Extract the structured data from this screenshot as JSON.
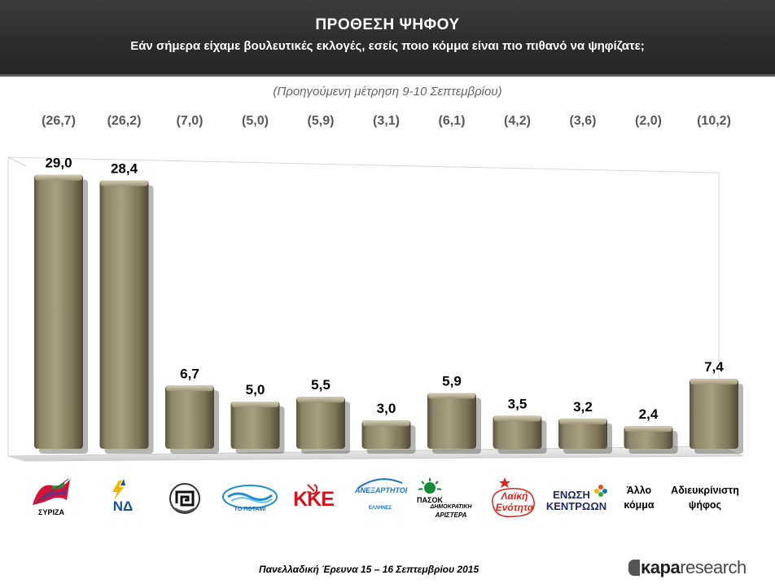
{
  "header": {
    "title": "ΠΡΟΘΕΣΗ ΨΗΦΟΥ",
    "subtitle": "Εάν σήμερα είχαμε βουλευτικές εκλογές, εσείς ποιο κόμμα είναι πιο πιθανό να ψηφίζατε;"
  },
  "previous_note": "(Προηγούμενη μέτρηση 9-10 Σεπτεμβρίου)",
  "chart_data": {
    "type": "bar",
    "title": "ΠΡΟΘΕΣΗ ΨΗΦΟΥ",
    "categories": [
      "ΣΥΡΙΖΑ",
      "ΝΔ",
      "Χρυσή Αυγή",
      "Το Ποτάμι",
      "ΚΚΕ",
      "Ανεξάρτητοι Έλληνες",
      "ΠΑΣΟΚ Δημοκρατική Αριστερά",
      "Λαϊκή Ενότητα",
      "Ένωση Κεντρώων",
      "Άλλο κόμμα",
      "Αδιευκρίνιστη ψήφος"
    ],
    "series": [
      {
        "name": "Πρόθεση ψήφου 15-16 Σεπτεμβρίου",
        "values": [
          29.0,
          28.4,
          6.7,
          5.0,
          5.5,
          3.0,
          5.9,
          3.5,
          3.2,
          2.4,
          7.4
        ]
      },
      {
        "name": "Προηγούμενη μέτρηση 9-10 Σεπτεμβρίου",
        "values": [
          26.7,
          26.2,
          7.0,
          5.0,
          5.9,
          3.1,
          6.1,
          4.2,
          3.6,
          2.0,
          10.2
        ]
      }
    ],
    "value_labels": [
      "29,0",
      "28,4",
      "6,7",
      "5,0",
      "5,5",
      "3,0",
      "5,9",
      "3,5",
      "3,2",
      "2,4",
      "7,4"
    ],
    "previous_labels": [
      "(26,7)",
      "(26,2)",
      "(7,0)",
      "(5,0)",
      "(5,9)",
      "(3,1)",
      "(6,1)",
      "(4,2)",
      "(3,6)",
      "(2,0)",
      "(10,2)"
    ],
    "ylim": [
      0,
      30
    ],
    "colors": {
      "bar": "#8a8066",
      "bar_light": "#c7bfa6",
      "bar_dark": "#4e4838",
      "prev_text": "#595959"
    }
  },
  "logos": {
    "syriza": "ΣΥΡΙΖΑ",
    "nd": "ΝΔ",
    "potami": "ΤΟ ΠΟΤΑΜΙ",
    "kke": "ΚΚΕ",
    "anel_1": "ΑΝΕΞΑΡΤΗΤΟΙ",
    "anel_2": "ΕΛΛΗΝΕΣ",
    "pasok_1": "ΠΑΣΟΚ",
    "pasok_2": "ΔΗΜΟΚΡΑΤΙΚΗ",
    "pasok_3": "ΑΡΙΣΤΕΡΑ",
    "laiki_1": "Λαϊκή",
    "laiki_2": "Ενότητα",
    "ek_1": "ΕΝΩΣΗ",
    "ek_2": "ΚΕΝΤΡΩΩΝ"
  },
  "category_labels": {
    "other": "Άλλο κόμμα",
    "undecided": "Αδιευκρίνιστη ψήφος"
  },
  "footer": {
    "survey": "Πανελλαδική Έρευνα  15 – 16 Σεπτεμβρίου 2015",
    "brand_1": "κapa",
    "brand_2": "research"
  }
}
